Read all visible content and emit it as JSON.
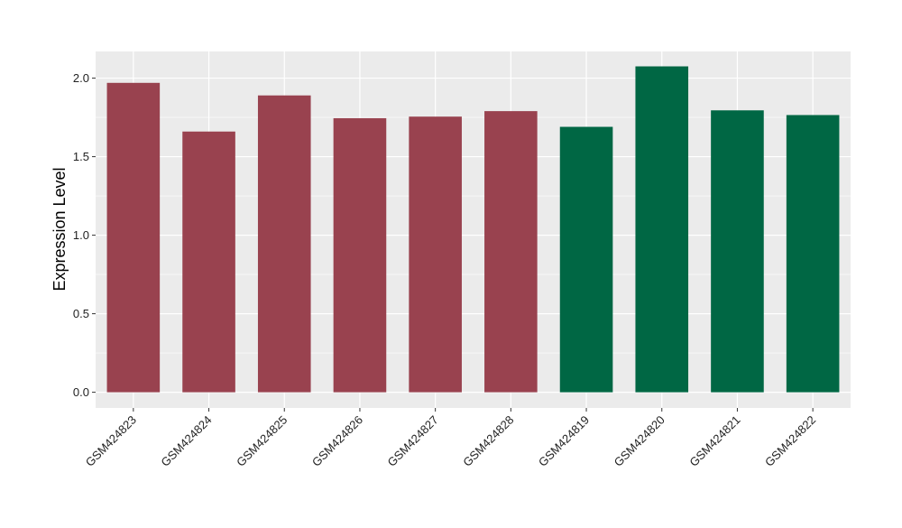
{
  "chart_data": {
    "type": "bar",
    "title": "",
    "xlabel": "",
    "ylabel": "Expression Level",
    "ylim": [
      -0.1,
      2.17
    ],
    "yticks": [
      0.0,
      0.5,
      1.0,
      1.5,
      2.0
    ],
    "ytick_labels": [
      "0.0",
      "0.5",
      "1.0",
      "1.5",
      "2.0"
    ],
    "grid": true,
    "legend": "none",
    "background_color": "#ebebeb",
    "grid_color": "#ffffff",
    "categories": [
      "GSM424823",
      "GSM424824",
      "GSM424825",
      "GSM424826",
      "GSM424827",
      "GSM424828",
      "GSM424819",
      "GSM424820",
      "GSM424821",
      "GSM424822"
    ],
    "values": [
      1.97,
      1.66,
      1.89,
      1.745,
      1.755,
      1.79,
      1.69,
      2.075,
      1.795,
      1.765
    ],
    "bar_colors": [
      "#99424f",
      "#99424f",
      "#99424f",
      "#99424f",
      "#99424f",
      "#99424f",
      "#006744",
      "#006744",
      "#006744",
      "#006744"
    ]
  }
}
